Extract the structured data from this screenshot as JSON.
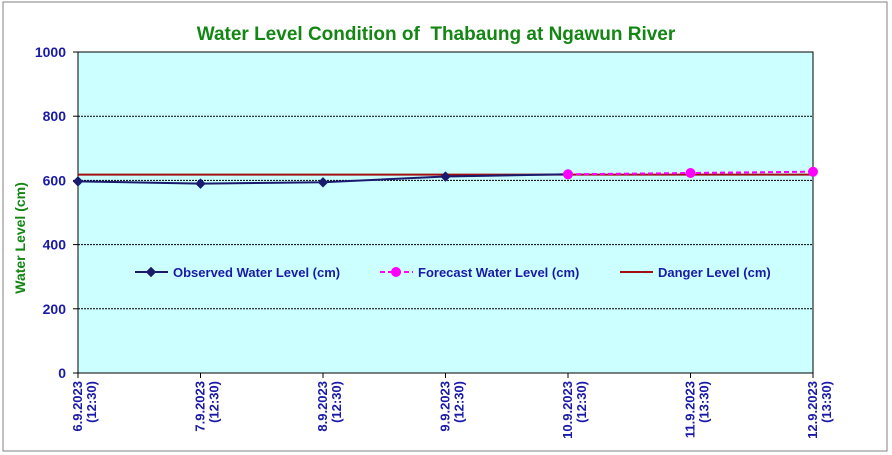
{
  "chart_data": {
    "type": "line",
    "title": "Water Level Condition of  Thabaung at Ngawun River",
    "ylabel": "Water Level (cm)",
    "xlabel": "",
    "ylim": [
      0,
      1000
    ],
    "yticks": [
      "0",
      "200",
      "400",
      "600",
      "800",
      "1000"
    ],
    "ytick_values": [
      0,
      200,
      400,
      600,
      800,
      1000
    ],
    "categories": [
      [
        "6.9.2023",
        "(12:30)"
      ],
      [
        "7.9.2023",
        "(12:30)"
      ],
      [
        "8.9.2023",
        "(12:30)"
      ],
      [
        "9.9.2023",
        "(12:30)"
      ],
      [
        "10.9.2023",
        "(12:30)"
      ],
      [
        "11.9.2023",
        "(13:30)"
      ],
      [
        "12.9.2023",
        "(13:30)"
      ]
    ],
    "grid": true,
    "legend_position": "center",
    "series": [
      {
        "name": "Observed Water Level (cm)",
        "values": [
          597,
          590,
          594,
          612,
          619,
          null,
          null
        ],
        "color": "#1a1a6e",
        "style": "solid",
        "marker": "diamond"
      },
      {
        "name": "Forecast Water Level (cm)",
        "values": [
          null,
          null,
          null,
          null,
          619,
          623,
          627
        ],
        "color": "#ff00ff",
        "style": "dashed",
        "marker": "circle"
      },
      {
        "name": "Danger Level (cm)",
        "values": [
          618,
          618,
          618,
          618,
          618,
          618,
          618
        ],
        "color": "#a01010",
        "style": "solid",
        "marker": "none"
      }
    ],
    "colors": {
      "plot_bg": "#ccffff",
      "frame": "#000000",
      "grid": "#000000",
      "outer_border": "#808080"
    }
  }
}
